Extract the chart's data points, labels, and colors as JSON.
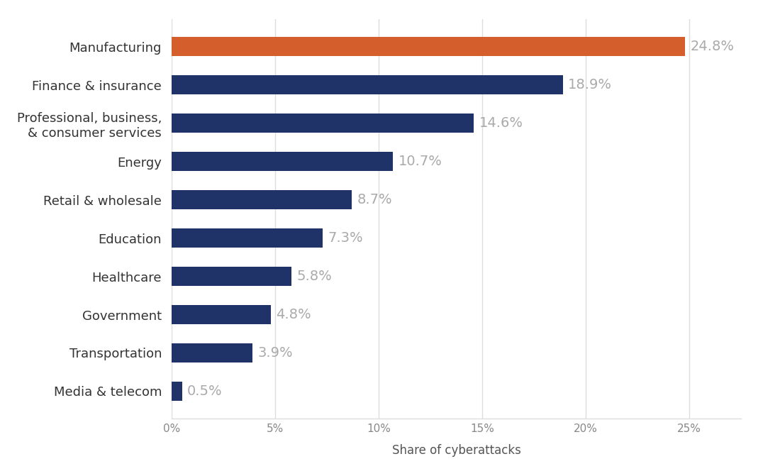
{
  "categories": [
    "Media & telecom",
    "Transportation",
    "Government",
    "Healthcare",
    "Education",
    "Retail & wholesale",
    "Energy",
    "Professional, business,\n& consumer services",
    "Finance & insurance",
    "Manufacturing"
  ],
  "values": [
    0.5,
    3.9,
    4.8,
    5.8,
    7.3,
    8.7,
    10.7,
    14.6,
    18.9,
    24.8
  ],
  "bar_colors": [
    "#1f3368",
    "#1f3368",
    "#1f3368",
    "#1f3368",
    "#1f3368",
    "#1f3368",
    "#1f3368",
    "#1f3368",
    "#1f3368",
    "#d45e2c"
  ],
  "label_color": "#aaaaaa",
  "xlabel": "Share of cyberattacks",
  "xlim": [
    0,
    27.5
  ],
  "xticks": [
    0,
    5,
    10,
    15,
    20,
    25
  ],
  "xtick_labels": [
    "0%",
    "5%",
    "10%",
    "15%",
    "20%",
    "25%"
  ],
  "background_color": "#ffffff",
  "bar_height": 0.5,
  "label_fontsize": 14,
  "ytick_fontsize": 13,
  "xtick_fontsize": 11,
  "xlabel_fontsize": 12,
  "grid_color": "#dddddd",
  "ytick_color": "#333333",
  "xtick_color": "#888888"
}
